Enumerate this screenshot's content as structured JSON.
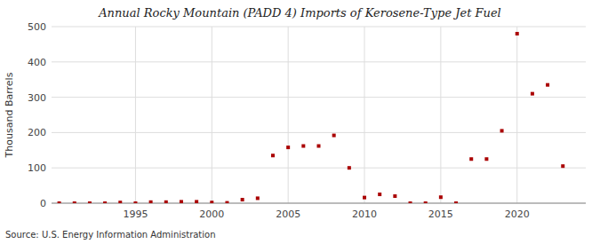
{
  "chart_data": {
    "type": "scatter",
    "title": "Annual Rocky Mountain (PADD 4) Imports of Kerosene-Type Jet Fuel",
    "y_label": "Thousand Barrels",
    "annotation": "Source: U.S. Energy Information Administration",
    "color": "#aa0000",
    "marker": "square",
    "grid": true,
    "x": [
      1990,
      1991,
      1992,
      1993,
      1994,
      1995,
      1996,
      1997,
      1998,
      1999,
      2000,
      2001,
      2002,
      2003,
      2004,
      2005,
      2006,
      2007,
      2008,
      2009,
      2010,
      2011,
      2012,
      2013,
      2014,
      2015,
      2016,
      2017,
      2018,
      2019,
      2020,
      2021,
      2022,
      2023
    ],
    "values": [
      0,
      0,
      0,
      0,
      2,
      0,
      3,
      3,
      4,
      4,
      2,
      1,
      10,
      14,
      135,
      158,
      162,
      162,
      192,
      100,
      16,
      25,
      20,
      0,
      0,
      17,
      0,
      125,
      125,
      205,
      480,
      310,
      335,
      105
    ],
    "xlim": [
      1989.5,
      2024.5
    ],
    "xticks": [
      1995,
      2000,
      2005,
      2010,
      2015,
      2020
    ],
    "ylim": [
      0,
      500
    ],
    "yticks": [
      0,
      100,
      200,
      300,
      400,
      500
    ]
  }
}
